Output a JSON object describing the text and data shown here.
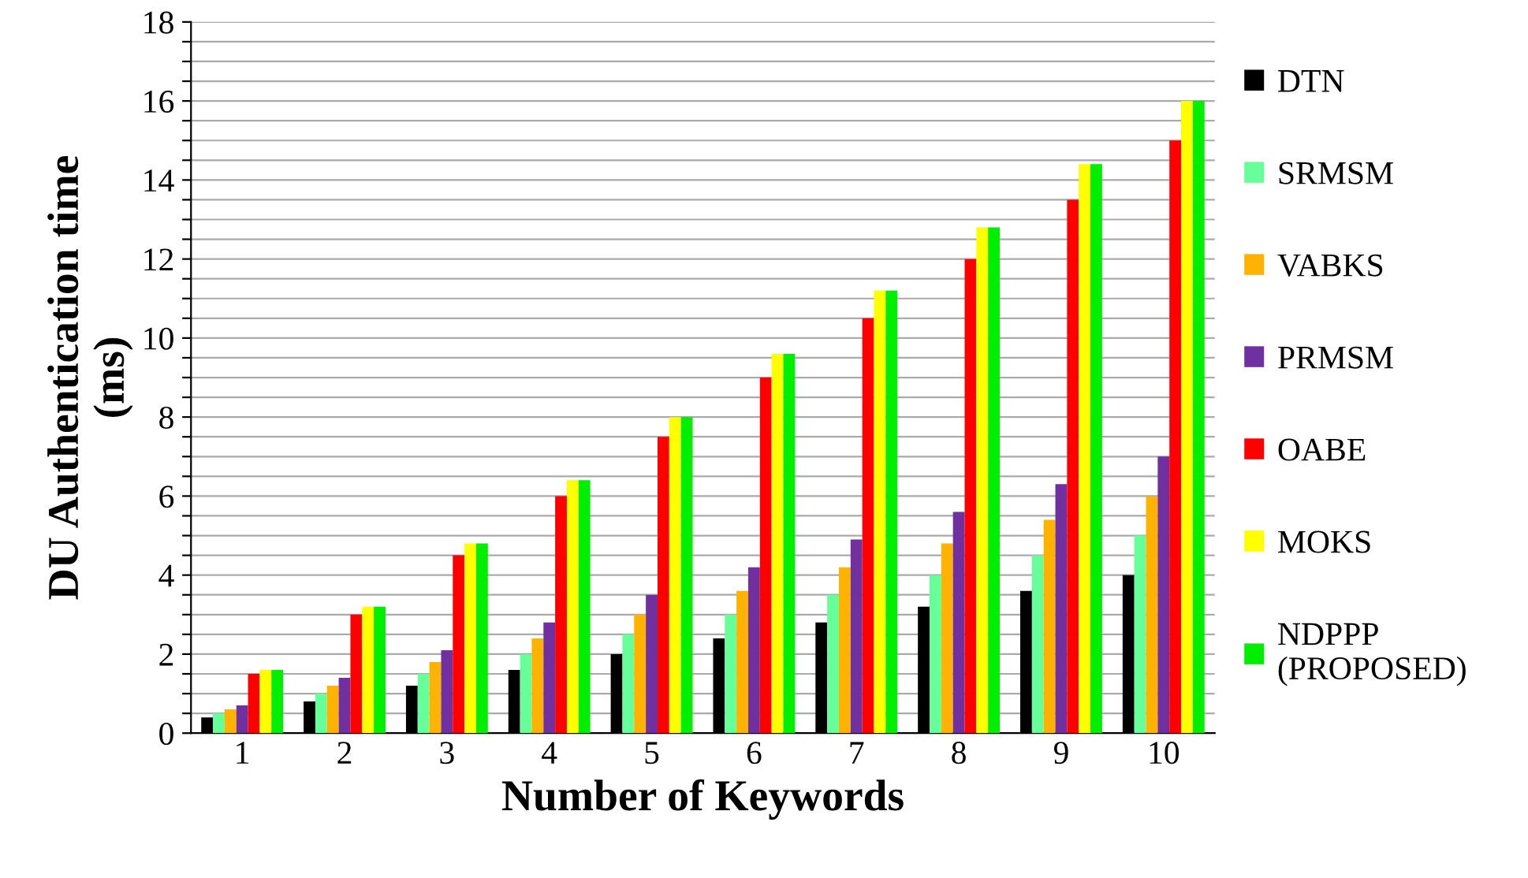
{
  "chart_data": {
    "type": "bar",
    "xlabel": "Number of Keywords",
    "ylabel": "DU Authentication time\n(ms)",
    "categories": [
      "1",
      "2",
      "3",
      "4",
      "5",
      "6",
      "7",
      "8",
      "9",
      "10"
    ],
    "series": [
      {
        "name": "DTN",
        "color": "#000000",
        "values": [
          0.4,
          0.8,
          1.2,
          1.6,
          2.0,
          2.4,
          2.8,
          3.2,
          3.6,
          4.0
        ]
      },
      {
        "name": "SRMSM",
        "color": "#66ff99",
        "values": [
          0.5,
          1.0,
          1.5,
          2.0,
          2.5,
          3.0,
          3.5,
          4.0,
          4.5,
          5.0
        ]
      },
      {
        "name": "VABKS",
        "color": "#ffb300",
        "values": [
          0.6,
          1.2,
          1.8,
          2.4,
          3.0,
          3.6,
          4.2,
          4.8,
          5.4,
          6.0
        ]
      },
      {
        "name": "PRMSM",
        "color": "#7030a0",
        "values": [
          0.7,
          1.4,
          2.1,
          2.8,
          3.5,
          4.2,
          4.9,
          5.6,
          6.3,
          7.0
        ]
      },
      {
        "name": "OABE",
        "color": "#ff0000",
        "values": [
          1.5,
          3.0,
          4.5,
          6.0,
          7.5,
          9.0,
          10.5,
          12.0,
          13.5,
          15.0
        ]
      },
      {
        "name": "MOKS",
        "color": "#ffff00",
        "values": [
          1.6,
          3.2,
          4.8,
          6.4,
          8.0,
          9.6,
          11.2,
          12.8,
          14.4,
          16.0
        ]
      },
      {
        "name": "NDPPP\n(PROPOSED)",
        "color": "#00ee00",
        "values": [
          1.6,
          3.2,
          4.8,
          6.4,
          8.0,
          9.6,
          11.2,
          12.8,
          14.4,
          16.0
        ]
      }
    ],
    "ylim": [
      0,
      18
    ],
    "yticks": [
      0,
      {
        "value": 0.5,
        "label": null
      },
      {
        "value": 1,
        "label": null
      },
      {
        "value": 1.5,
        "label": null
      },
      2,
      {
        "value": 2.5,
        "label": null
      },
      {
        "value": 3,
        "label": null
      },
      {
        "value": 3.5,
        "label": null
      },
      4,
      {
        "value": 4.5,
        "label": null
      },
      {
        "value": 5,
        "label": null
      },
      {
        "value": 5.5,
        "label": null
      },
      6,
      {
        "value": 6.5,
        "label": null
      },
      {
        "value": 7,
        "label": null
      },
      {
        "value": 7.5,
        "label": null
      },
      8,
      {
        "value": 8.5,
        "label": null
      },
      {
        "value": 9,
        "label": null
      },
      {
        "value": 9.5,
        "label": null
      },
      10,
      {
        "value": 10.5,
        "label": null
      },
      {
        "value": 11,
        "label": null
      },
      {
        "value": 11.5,
        "label": null
      },
      12,
      {
        "value": 12.5,
        "label": null
      },
      {
        "value": 13,
        "label": null
      },
      {
        "value": 13.5,
        "label": null
      },
      14,
      {
        "value": 14.5,
        "label": null
      },
      {
        "value": 15,
        "label": null
      },
      {
        "value": 15.5,
        "label": null
      },
      16,
      {
        "value": 16.5,
        "label": null
      },
      {
        "value": 17,
        "label": null
      },
      {
        "value": 17.5,
        "label": null
      },
      18
    ],
    "grid": "y",
    "legend": "right"
  }
}
